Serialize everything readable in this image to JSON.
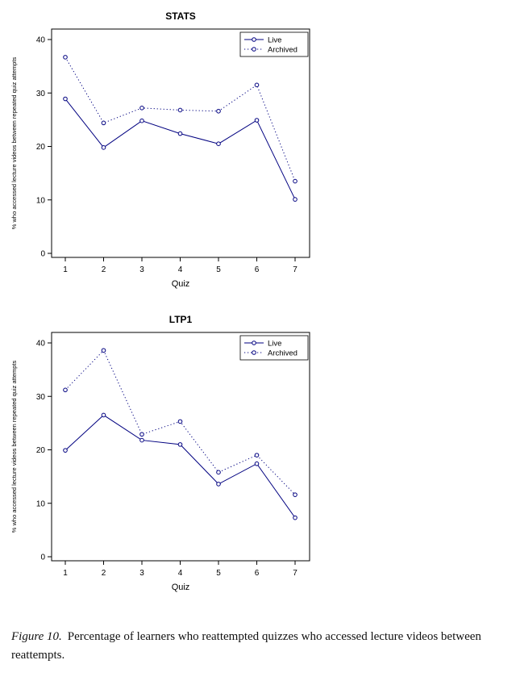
{
  "caption": {
    "label": "Figure 10.",
    "text": "Percentage of learners who reattempted quizzes who accessed lecture videos between reattempts."
  },
  "colors": {
    "series": "#000080",
    "axis": "#000000",
    "background": "#ffffff"
  },
  "chart_data": [
    {
      "id": "stats",
      "type": "line",
      "title": "STATS",
      "xlabel": "Quiz",
      "ylabel": "% who accessed lecture videos between repeated quiz attempts",
      "x": [
        1,
        2,
        3,
        4,
        5,
        6,
        7
      ],
      "ylim": [
        0,
        40
      ],
      "yticks": [
        0,
        10,
        20,
        30,
        40
      ],
      "grid": false,
      "legend_position": "top-right",
      "series": [
        {
          "name": "Live",
          "style": "solid",
          "marker": "circle",
          "color": "#000080",
          "values": [
            28.9,
            19.8,
            24.8,
            22.4,
            20.5,
            24.9,
            10.1
          ]
        },
        {
          "name": "Archived",
          "style": "dotted",
          "marker": "circle",
          "color": "#000080",
          "values": [
            36.7,
            24.4,
            27.2,
            26.8,
            26.6,
            31.5,
            13.5
          ]
        }
      ]
    },
    {
      "id": "ltp1",
      "type": "line",
      "title": "LTP1",
      "xlabel": "Quiz",
      "ylabel": "% who accessed lecture videos between repeated quiz attempts",
      "x": [
        1,
        2,
        3,
        4,
        5,
        6,
        7
      ],
      "ylim": [
        0,
        40
      ],
      "yticks": [
        0,
        10,
        20,
        30,
        40
      ],
      "grid": false,
      "legend_position": "top-right",
      "series": [
        {
          "name": "Live",
          "style": "solid",
          "marker": "circle",
          "color": "#000080",
          "values": [
            19.9,
            26.5,
            21.8,
            21.0,
            13.6,
            17.4,
            7.3
          ]
        },
        {
          "name": "Archived",
          "style": "dotted",
          "marker": "circle",
          "color": "#000080",
          "values": [
            31.2,
            38.6,
            22.9,
            25.3,
            15.8,
            19.0,
            11.6
          ]
        }
      ]
    }
  ]
}
